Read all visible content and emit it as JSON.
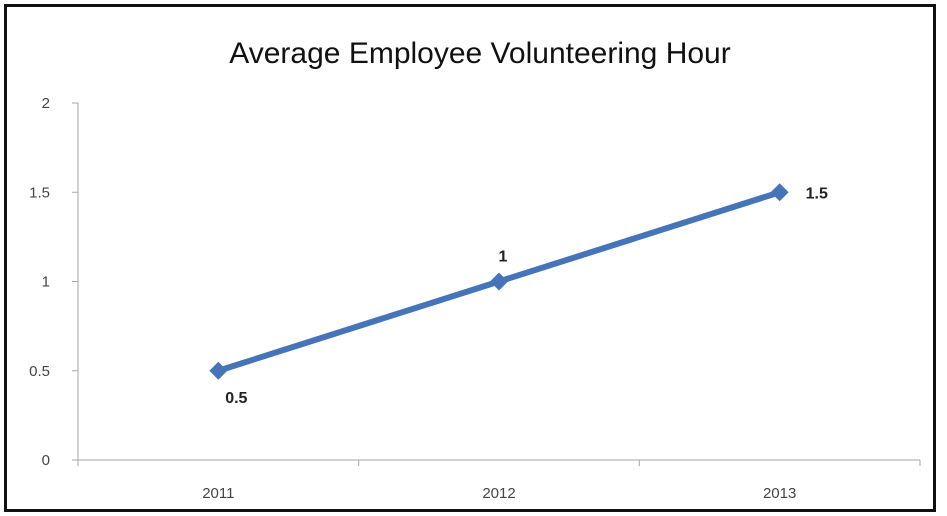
{
  "chart_data": {
    "type": "line",
    "title": "Average Employee Volunteering Hour",
    "categories": [
      "2011",
      "2012",
      "2013"
    ],
    "series": [
      {
        "values": [
          0.5,
          1,
          1.5
        ],
        "data_labels": [
          "0.5",
          "1",
          "1.5"
        ]
      }
    ],
    "y_ticks": [
      "0",
      "0.5",
      "1",
      "1.5",
      "2"
    ],
    "ylim": [
      0,
      2
    ],
    "grid": false,
    "legend": "none",
    "colors": {
      "series": "#4674b8",
      "axis": "#a6a6a6"
    }
  }
}
